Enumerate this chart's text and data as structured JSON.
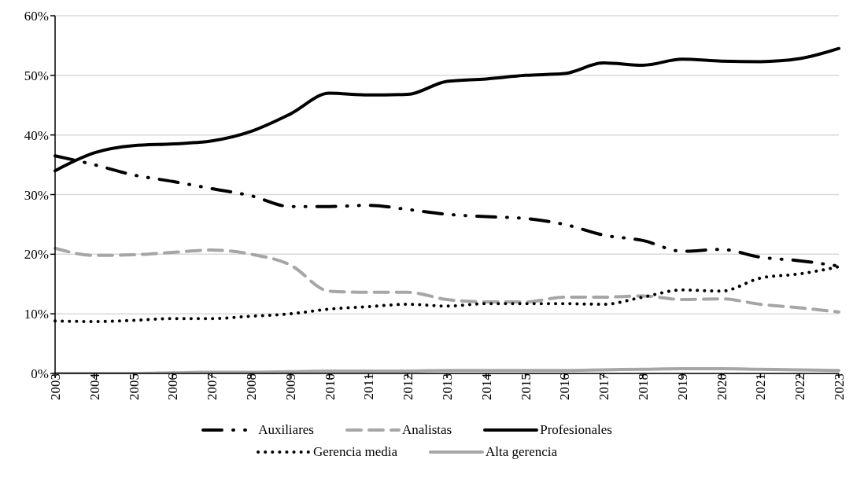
{
  "chart_data": {
    "type": "line",
    "categories": [
      "2003",
      "2004",
      "2005",
      "2006",
      "2007",
      "2008",
      "2009",
      "2010",
      "2011",
      "2012",
      "2013",
      "2014",
      "2015",
      "2016",
      "2017",
      "2018",
      "2019",
      "2020",
      "2021",
      "2022",
      "2023"
    ],
    "series": [
      {
        "name": "Auxiliares",
        "color": "#000000",
        "line_style": "dashed",
        "values": [
          36.5,
          35,
          33.3,
          32.2,
          31,
          29.8,
          28,
          28,
          28.2,
          27.5,
          26.7,
          26.3,
          26,
          25,
          23.2,
          22.3,
          20.5,
          20.8,
          19.5,
          18.9,
          18
        ]
      },
      {
        "name": "Analistas",
        "color": "#a6a6a6",
        "line_style": "dashed",
        "values": [
          21,
          19.8,
          19.9,
          20.3,
          20.7,
          20,
          18.2,
          13.8,
          13.6,
          13.6,
          12.4,
          12,
          12,
          12.8,
          12.8,
          13,
          12.4,
          12.5,
          11.6,
          11,
          10.3
        ]
      },
      {
        "name": "Profesionales",
        "color": "#000000",
        "line_style": "solid",
        "values": [
          34,
          37,
          38.2,
          38.5,
          39,
          40.6,
          43.5,
          47,
          46.7,
          46.8,
          49,
          49.4,
          50,
          50.3,
          52.1,
          51.7,
          52.7,
          52.4,
          52.3,
          52.8,
          54.5
        ]
      },
      {
        "name": "Gerencia media",
        "color": "#000000",
        "line_style": "dotted",
        "values": [
          8.8,
          8.7,
          8.9,
          9.2,
          9.2,
          9.6,
          10,
          10.8,
          11.2,
          11.6,
          11.3,
          11.7,
          11.7,
          11.7,
          11.6,
          12.8,
          14,
          13.8,
          16,
          16.7,
          17.9
        ]
      },
      {
        "name": "Alta gerencia",
        "color": "#a6a6a6",
        "line_style": "solid",
        "values": [
          0,
          0,
          0,
          0.1,
          0.2,
          0.2,
          0.3,
          0.4,
          0.4,
          0.4,
          0.5,
          0.5,
          0.5,
          0.5,
          0.6,
          0.7,
          0.8,
          0.8,
          0.7,
          0.6,
          0.5
        ]
      }
    ],
    "ylim": [
      0,
      60
    ],
    "yticks": [
      {
        "value": 0,
        "label": "0%"
      },
      {
        "value": 10,
        "label": "10%"
      },
      {
        "value": 20,
        "label": "20%"
      },
      {
        "value": 30,
        "label": "30%"
      },
      {
        "value": 40,
        "label": "40%"
      },
      {
        "value": 50,
        "label": "50%"
      },
      {
        "value": 60,
        "label": "60%"
      }
    ],
    "grid": "y",
    "legend": "bottom",
    "marker": "none"
  }
}
